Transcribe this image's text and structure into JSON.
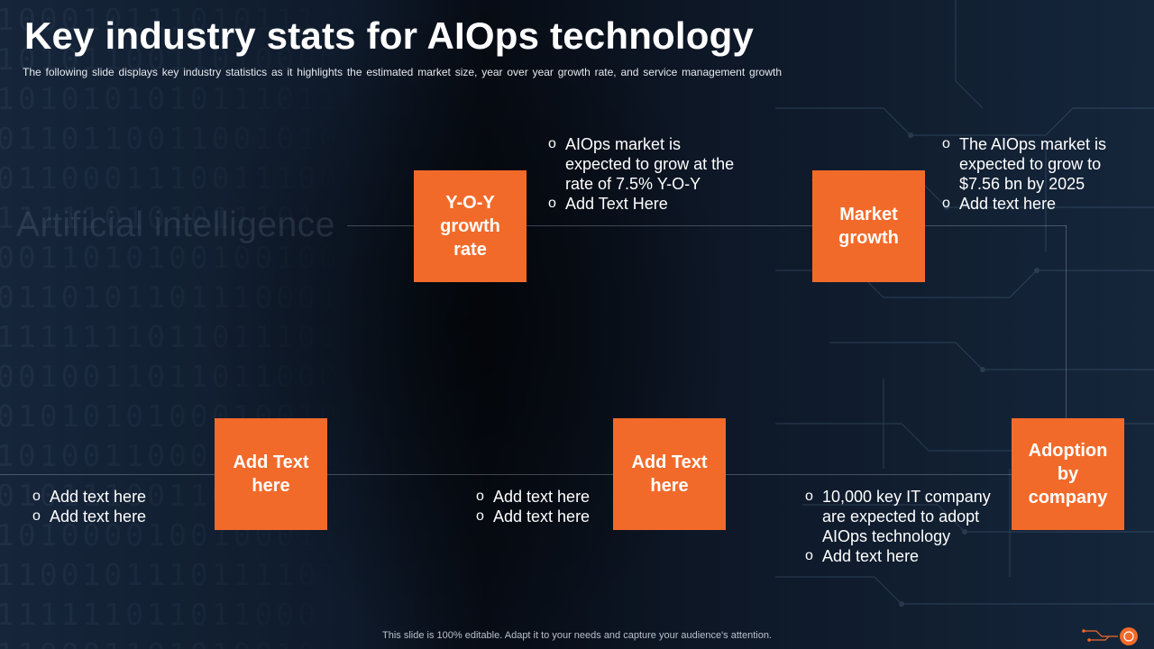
{
  "slide": {
    "title": "Key industry stats for AIOps technology",
    "subtitle": "The following  slide displays key industry statistics as it highlights the estimated market size, year over  year growth  rate,  and  service  management  growth",
    "watermark": "Artificial intelligence",
    "footer": "This slide is 100% editable. Adapt it to your needs and capture your audience's attention."
  },
  "boxes": {
    "yoy": {
      "label": "Y-O-Y growth rate"
    },
    "market": {
      "label": "Market growth"
    },
    "add_left": {
      "label": "Add Text here"
    },
    "add_mid": {
      "label": "Add Text here"
    },
    "adoption": {
      "label": "Adoption by company"
    }
  },
  "bullets": {
    "yoy": [
      "AIOps market is expected to grow at the rate of 7.5% Y-O-Y",
      "Add Text Here"
    ],
    "market": [
      "The AIOps market is expected to grow to $7.56 bn by 2025",
      "Add text here"
    ],
    "add_left": [
      "Add text here",
      "Add text here"
    ],
    "add_mid": [
      "Add text here",
      "Add text here"
    ],
    "adoption": [
      "10,000 key IT company are expected to adopt AIOps technology",
      "Add text here"
    ]
  },
  "bullet_marker": "o",
  "colors": {
    "accent": "#f26a2a",
    "background": "#0b1421",
    "text": "#ffffff"
  },
  "icons": {
    "brand": "circuit-logo-icon"
  }
}
